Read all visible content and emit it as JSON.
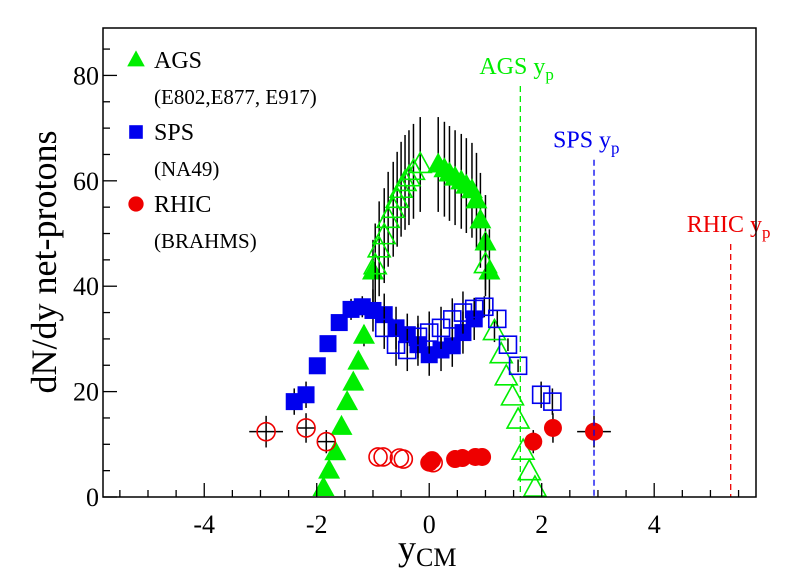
{
  "chart_data": {
    "type": "scatter",
    "title": "",
    "xlabel": "y",
    "xlabel_sub": "CM",
    "ylabel": "dN/dy net-protons",
    "xlim": [
      -5.8,
      5.81
    ],
    "ylim": [
      0,
      89
    ],
    "x_major_ticks": [
      -4,
      -2,
      0,
      2,
      4
    ],
    "x_tick_labels": [
      "-4",
      "-2",
      "0",
      "2",
      "4"
    ],
    "x_minor_step": 0.5,
    "y_major_ticks": [
      0,
      20,
      40,
      60,
      80
    ],
    "y_tick_labels": [
      "0",
      "20",
      "40",
      "60",
      "80"
    ],
    "y_minor_step": 5,
    "grid": false,
    "legend_position": "top-left",
    "legend": [
      {
        "label": "AGS",
        "sublabel": "(E802,E877, E917)",
        "marker": "triangle",
        "color": "#00ee00"
      },
      {
        "label": "SPS",
        "sublabel": "(NA49)",
        "marker": "square",
        "color": "#0000ee"
      },
      {
        "label": "RHIC",
        "sublabel": "(BRAHMS)",
        "marker": "circle",
        "color": "#ee0000"
      }
    ],
    "series": [
      {
        "name": "AGS measured",
        "marker": "triangle",
        "filled": true,
        "color": "#00ee00",
        "x": [
          -1.88,
          -1.78,
          -1.67,
          -1.56,
          -1.46,
          -1.35,
          -1.26,
          -1.16,
          -1.0,
          0.16,
          0.27,
          0.36,
          0.46,
          0.57,
          0.66,
          0.76,
          0.84,
          0.91,
          1.0,
          1.07
        ],
        "y": [
          1.7,
          5.0,
          8.5,
          13.3,
          18.0,
          21.7,
          25.7,
          30.6,
          42.8,
          63.1,
          62.2,
          61.4,
          60.6,
          59.9,
          59.1,
          58.2,
          56.3,
          52.5,
          48.3,
          42.8
        ],
        "yerr": [
          0,
          0,
          0,
          0,
          0,
          0,
          0,
          2,
          6,
          9,
          9,
          9,
          9,
          9,
          9,
          9,
          9,
          9,
          9,
          8
        ]
      },
      {
        "name": "AGS reflected",
        "marker": "triangle",
        "filled": false,
        "color": "#00ee00",
        "x": [
          -0.96,
          -0.89,
          -0.8,
          -0.73,
          -0.64,
          -0.57,
          -0.5,
          -0.43,
          -0.36,
          -0.28,
          -0.16,
          1.0,
          1.16,
          1.28,
          1.37,
          1.48,
          1.58,
          1.67,
          1.78,
          1.88
        ],
        "y": [
          43.9,
          47.1,
          49.6,
          52.7,
          54.6,
          56.5,
          58.4,
          59.7,
          60.6,
          61.8,
          63.1,
          44.1,
          31.4,
          27.0,
          22.8,
          19.0,
          14.6,
          8.7,
          4.8,
          1.7
        ],
        "yerr": [
          8,
          9,
          9,
          9,
          9,
          9,
          9,
          9,
          9,
          9,
          9,
          6,
          2,
          0,
          0,
          0,
          0,
          0,
          0,
          0
        ]
      },
      {
        "name": "SPS measured",
        "marker": "square",
        "filled": true,
        "color": "#0000ee",
        "x": [
          -2.4,
          -2.19,
          -1.99,
          -1.8,
          -1.6,
          -1.39,
          -1.19,
          -1.0,
          -0.8,
          -0.59,
          -0.39,
          -0.2,
          0.0,
          0.21,
          0.41,
          0.6,
          0.8
        ],
        "y": [
          18.1,
          19.4,
          24.9,
          29.1,
          33.1,
          35.6,
          36.1,
          35.4,
          34.6,
          32.1,
          30.8,
          28.9,
          27.0,
          27.9,
          28.7,
          31.2,
          33.8
        ],
        "yerr": [
          2.5,
          2.5,
          1.2,
          1.2,
          1.5,
          2,
          2,
          4,
          4,
          4,
          4,
          4,
          4,
          4,
          4,
          4,
          4
        ]
      },
      {
        "name": "SPS reflected",
        "marker": "square",
        "filled": false,
        "color": "#0000ee",
        "x": [
          -0.8,
          -0.59,
          -0.39,
          -0.2,
          0.0,
          0.21,
          0.41,
          0.6,
          0.8,
          0.98,
          1.21,
          1.4,
          1.58,
          1.99,
          2.19
        ],
        "y": [
          32.1,
          28.9,
          27.9,
          30.4,
          31.2,
          32.1,
          33.7,
          35.0,
          35.7,
          36.1,
          33.8,
          28.9,
          24.9,
          19.4,
          18.1
        ],
        "yerr": [
          4,
          4,
          4,
          4,
          4,
          4,
          4,
          4,
          2,
          2,
          1.5,
          1.2,
          1.2,
          2.5,
          2.5
        ]
      },
      {
        "name": "RHIC measured",
        "marker": "circle",
        "filled": true,
        "color": "#ee0000",
        "x": [
          0.0,
          0.05,
          0.46,
          0.59,
          0.82,
          0.94,
          1.85,
          2.2,
          2.93
        ],
        "y": [
          6.5,
          7.0,
          7.2,
          7.4,
          7.6,
          7.6,
          10.5,
          13.1,
          12.4
        ],
        "yerr": [
          0,
          0,
          0,
          0,
          0,
          0,
          2.2,
          2.8,
          3
        ],
        "xerr": [
          0,
          0,
          0,
          0,
          0,
          0,
          0.15,
          0.15,
          0.3
        ]
      },
      {
        "name": "RHIC reflected",
        "marker": "circle",
        "filled": false,
        "color": "#ee0000",
        "x": [
          -2.9,
          -2.19,
          -1.83,
          -0.91,
          -0.82,
          -0.53,
          -0.46,
          0.07
        ],
        "y": [
          12.4,
          13.1,
          10.5,
          7.6,
          7.6,
          7.4,
          7.2,
          6.5
        ],
        "yerr": [
          3,
          2.8,
          2.2,
          0,
          0,
          0,
          0,
          0
        ],
        "xerr": [
          0.3,
          0.15,
          0.15,
          0,
          0,
          0,
          0,
          0
        ]
      }
    ],
    "beam_rapidity_lines": [
      {
        "label": "AGS",
        "sub": "p",
        "x": 1.62,
        "ymax": 78,
        "color": "#00ee00"
      },
      {
        "label": "SPS",
        "sub": "p",
        "x": 2.93,
        "ymax": 64,
        "color": "#0000ee"
      },
      {
        "label": "RHIC",
        "sub": "p",
        "x": 5.36,
        "ymax": 48,
        "color": "#ee0000"
      }
    ],
    "annotation_suffix": " y"
  }
}
